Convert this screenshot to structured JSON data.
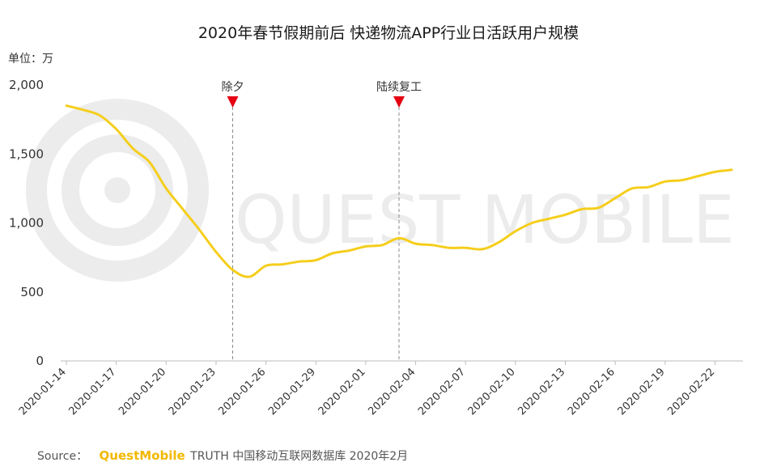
{
  "chart_data": {
    "type": "line",
    "title": "2020年春节假期前后 快递物流APP行业日活跃用户规模",
    "unit_label": "单位：万",
    "ylim": [
      0,
      2000
    ],
    "yticks": [
      "0",
      "500",
      "1,000",
      "1,500",
      "2,000"
    ],
    "ytick_values": [
      0,
      500,
      1000,
      1500,
      2000
    ],
    "x_tick_labels": [
      "2020-01-14",
      "2020-01-17",
      "2020-01-20",
      "2020-01-23",
      "2020-01-26",
      "2020-01-29",
      "2020-02-01",
      "2020-02-04",
      "2020-02-07",
      "2020-02-10",
      "2020-02-13",
      "2020-02-16",
      "2020-02-19",
      "2020-02-22"
    ],
    "grid": false,
    "x": [
      "2020-01-14",
      "2020-01-15",
      "2020-01-16",
      "2020-01-17",
      "2020-01-18",
      "2020-01-19",
      "2020-01-20",
      "2020-01-21",
      "2020-01-22",
      "2020-01-23",
      "2020-01-24",
      "2020-01-25",
      "2020-01-26",
      "2020-01-27",
      "2020-01-28",
      "2020-01-29",
      "2020-01-30",
      "2020-01-31",
      "2020-02-01",
      "2020-02-02",
      "2020-02-03",
      "2020-02-04",
      "2020-02-05",
      "2020-02-06",
      "2020-02-07",
      "2020-02-08",
      "2020-02-09",
      "2020-02-10",
      "2020-02-11",
      "2020-02-12",
      "2020-02-13",
      "2020-02-14",
      "2020-02-15",
      "2020-02-16",
      "2020-02-17",
      "2020-02-18",
      "2020-02-19",
      "2020-02-20",
      "2020-02-21",
      "2020-02-22",
      "2020-02-23"
    ],
    "series": [
      {
        "color": "#F5CE1C",
        "values": [
          1850,
          1820,
          1780,
          1680,
          1540,
          1440,
          1250,
          1100,
          950,
          790,
          660,
          610,
          690,
          700,
          720,
          730,
          780,
          800,
          830,
          840,
          890,
          850,
          840,
          820,
          820,
          810,
          860,
          940,
          1000,
          1030,
          1060,
          1100,
          1110,
          1180,
          1250,
          1260,
          1300,
          1310,
          1340,
          1370,
          1385
        ]
      }
    ],
    "annotations": [
      {
        "label": "除夕",
        "x": "2020-01-24",
        "marker_color": "#E60012"
      },
      {
        "label": "陆续复工",
        "x": "2020-02-03",
        "marker_color": "#E60012"
      }
    ]
  },
  "source": {
    "prefix": "Source：",
    "brand": "QuestMobile",
    "text": "TRUTH 中国移动互联网数据库 2020年2月"
  },
  "watermark": {
    "text": "QUEST MOBILE"
  }
}
